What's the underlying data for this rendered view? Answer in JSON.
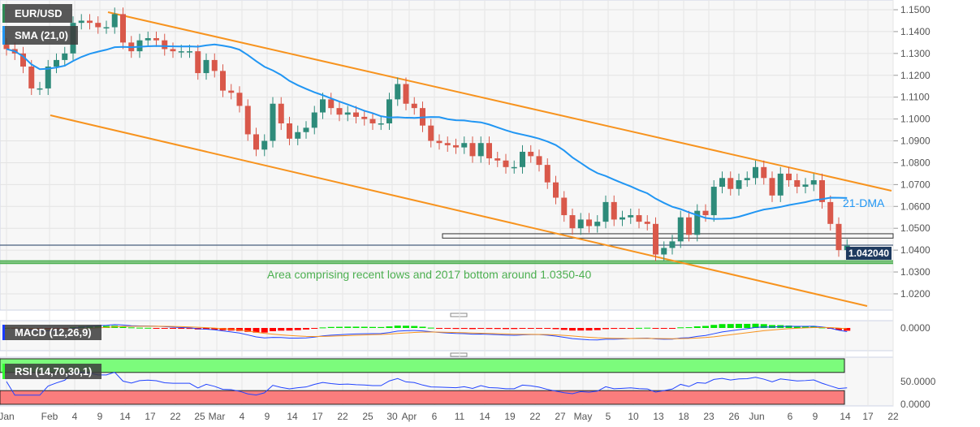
{
  "header": {
    "symbol": "EUR/USD",
    "sma_label": "SMA (21,0)",
    "macd_label": "MACD (12,26,9)",
    "rsi_label": "RSI (14,70,30,1)"
  },
  "price_label": "1.042040",
  "annotations": {
    "dma": "21-DMA",
    "support_area": "Area comprising recent lows and 2017 bottom around 1.0350-40"
  },
  "colors": {
    "up": "#2e8b7a",
    "down": "#d9584a",
    "sma": "#2196f3",
    "trend": "#f7931e",
    "support": "#4caf50",
    "rsi_ob": "#7cfc7c",
    "rsi_os": "#fa7d7d"
  },
  "chart_data": {
    "type": "candlestick",
    "title": "EUR/USD",
    "closes": [
      1.132,
      1.13,
      1.124,
      1.114,
      1.114,
      1.124,
      1.127,
      1.13,
      1.144,
      1.145,
      1.144,
      1.142,
      1.142,
      1.148,
      1.135,
      1.131,
      1.136,
      1.137,
      1.136,
      1.132,
      1.131,
      1.131,
      1.131,
      1.121,
      1.127,
      1.122,
      1.113,
      1.112,
      1.106,
      1.093,
      1.086,
      1.09,
      1.107,
      1.098,
      1.091,
      1.094,
      1.096,
      1.103,
      1.109,
      1.105,
      1.102,
      1.103,
      1.101,
      1.1,
      1.098,
      1.098,
      1.109,
      1.116,
      1.107,
      1.105,
      1.097,
      1.09,
      1.089,
      1.088,
      1.087,
      1.089,
      1.083,
      1.089,
      1.082,
      1.081,
      1.078,
      1.078,
      1.085,
      1.083,
      1.079,
      1.071,
      1.064,
      1.056,
      1.05,
      1.054,
      1.051,
      1.053,
      1.062,
      1.054,
      1.055,
      1.056,
      1.053,
      1.052,
      1.038,
      1.041,
      1.044,
      1.055,
      1.047,
      1.058,
      1.056,
      1.069,
      1.073,
      1.068,
      1.072,
      1.073,
      1.078,
      1.073,
      1.065,
      1.075,
      1.072,
      1.069,
      1.07,
      1.072,
      1.062,
      1.052,
      1.04,
      1.042
    ],
    "y_ticks": [
      "1.1500",
      "1.1400",
      "1.1300",
      "1.1200",
      "1.1100",
      "1.1000",
      "1.0900",
      "1.0800",
      "1.0700",
      "1.0600",
      "1.0500",
      "1.0400",
      "1.0300",
      "1.0200"
    ],
    "ylim": [
      1.015,
      1.152
    ],
    "x_ticks": [
      "Jan",
      "Feb",
      "4",
      "9",
      "14",
      "17",
      "22",
      "25",
      "Mar",
      "4",
      "9",
      "14",
      "17",
      "22",
      "25",
      "30",
      "Apr",
      "6",
      "11",
      "14",
      "19",
      "22",
      "27",
      "May",
      "5",
      "10",
      "13",
      "18",
      "23",
      "26",
      "Jun",
      "6",
      "9",
      "14",
      "17",
      "22"
    ],
    "macd_ticks": [
      "0.0000"
    ],
    "rsi_ticks": [
      "50.0000",
      "0.0000"
    ],
    "rsi_levels": [
      70,
      30
    ],
    "support_zone": [
      1.034,
      1.035
    ],
    "resistance_box": [
      1.0455,
      1.0475
    ]
  }
}
